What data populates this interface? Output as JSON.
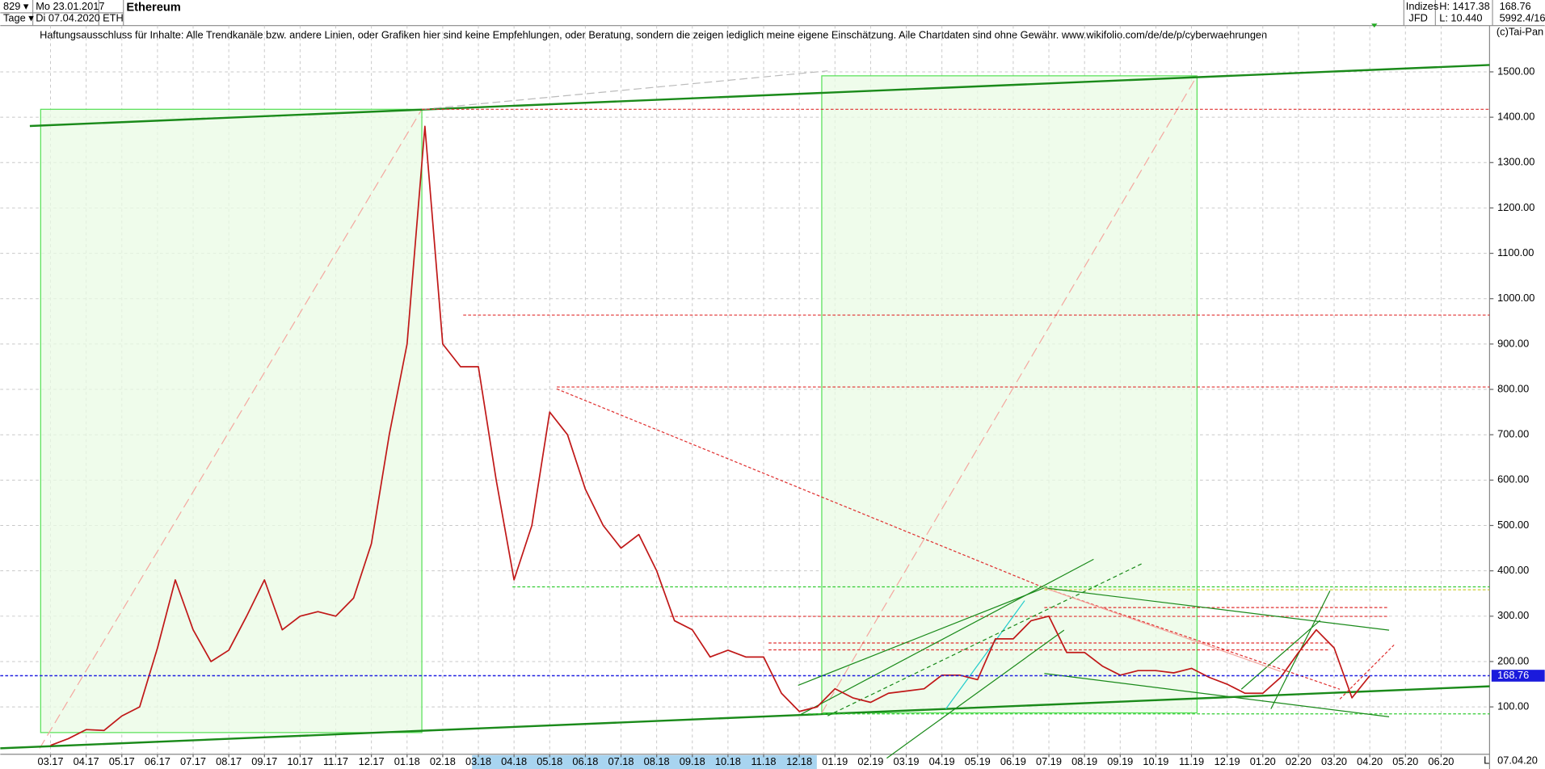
{
  "header": {
    "count": "829 ▾",
    "start_date": "Mo 23.01.2017",
    "period": "Tage ▾",
    "end_date": "Di 07.04.2020",
    "name": "Ethereum",
    "symbol": "ETH",
    "group": "Indizes",
    "source": "JFD",
    "high": "H: 1417.38",
    "low": "L: 10.440",
    "info": "5992.4/16",
    "copyright": "(c)Tai-Pan",
    "disclaimer": "Haftungsausschluss für Inhalte: Alle Trendkanäle bzw. andere Linien, oder Grafiken hier sind keine Empfehlungen, oder Beratung, sondern die zeigen lediglich meine eigene Einschätzung. Alle Chartdaten sind ohne Gewähr.  www.wikifolio.com/de/de/p/cyberwaehrungen",
    "scale_mode": "L",
    "date_label": "07.04.20"
  },
  "chart_data": {
    "type": "line",
    "title": "Ethereum",
    "categories": [
      "03.17",
      null,
      "04.17",
      null,
      "05.17",
      null,
      "06.17",
      null,
      "07.17",
      null,
      "08.17",
      null,
      "09.17",
      null,
      "10.17",
      null,
      "11.17",
      null,
      "12.17",
      null,
      "01.18",
      null,
      "02.18",
      null,
      "03.18",
      null,
      "04.18",
      null,
      "05.18",
      null,
      "06.18",
      null,
      "07.18",
      null,
      "08.18",
      null,
      "09.18",
      null,
      "10.18",
      null,
      "11.18",
      null,
      "12.18",
      null,
      "01.19",
      null,
      "02.19",
      null,
      "03.19",
      null,
      "04.19",
      null,
      "05.19",
      null,
      "06.19",
      null,
      "07.19",
      null,
      "08.19",
      null,
      "09.19",
      null,
      "10.19",
      null,
      "11.19",
      null,
      "12.19",
      null,
      "01.20",
      null,
      "02.20",
      null,
      "03.20",
      null,
      "04.20",
      null,
      "05.20",
      null,
      "06.20",
      null
    ],
    "values": [
      15,
      30,
      50,
      48,
      80,
      100,
      230,
      380,
      270,
      200,
      225,
      300,
      380,
      270,
      300,
      310,
      300,
      340,
      460,
      700,
      900,
      1380,
      900,
      850,
      850,
      600,
      380,
      500,
      750,
      700,
      580,
      500,
      450,
      480,
      400,
      290,
      270,
      210,
      225,
      210,
      210,
      130,
      90,
      100,
      140,
      120,
      110,
      130,
      135,
      140,
      170,
      170,
      160,
      250,
      250,
      290,
      300,
      220,
      220,
      190,
      170,
      180,
      180,
      175,
      185,
      165,
      150,
      130,
      130,
      165,
      220,
      270,
      230,
      120,
      168.76,
      null,
      null,
      null,
      null,
      null
    ],
    "color": "#c01818",
    "ylim": [
      0,
      1602
    ],
    "yticks": [
      {
        "value": 100,
        "label": "100.00"
      },
      {
        "value": 200,
        "label": "200.00"
      },
      {
        "value": 300,
        "label": "300.00"
      },
      {
        "value": 400,
        "label": "400.00"
      },
      {
        "value": 500,
        "label": "500.00"
      },
      {
        "value": 600,
        "label": "600.00"
      },
      {
        "value": 700,
        "label": "700.00"
      },
      {
        "value": 800,
        "label": "800.00"
      },
      {
        "value": 900,
        "label": "900.00"
      },
      {
        "value": 1000,
        "label": "1000.00"
      },
      {
        "value": 1100,
        "label": "1100.00"
      },
      {
        "value": 1200,
        "label": "1200.00"
      },
      {
        "value": 1300,
        "label": "1300.00"
      },
      {
        "value": 1400,
        "label": "1400.00"
      },
      {
        "value": 1500,
        "label": "1500.00"
      }
    ],
    "last_price": 168.76,
    "grid": true
  }
}
